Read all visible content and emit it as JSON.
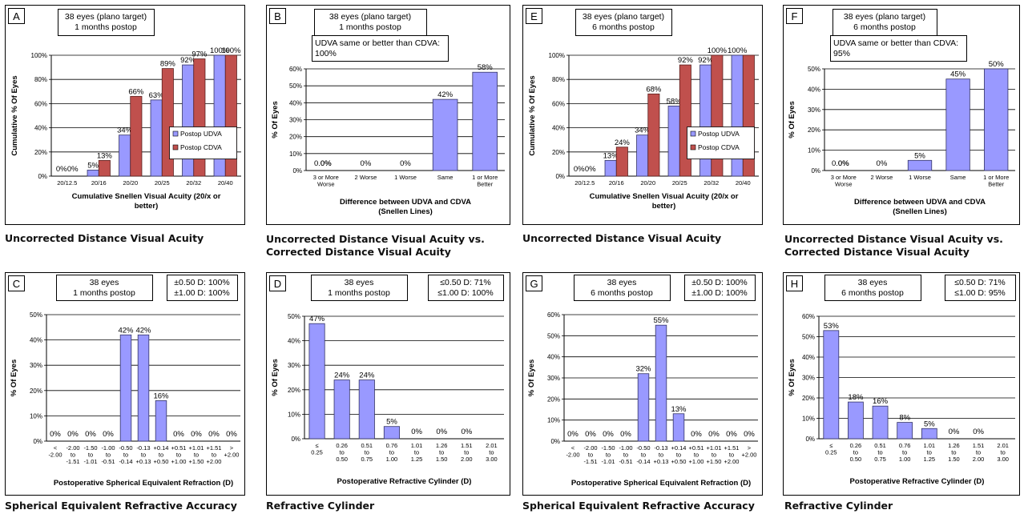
{
  "colors": {
    "udva": "#9999ff",
    "cdva": "#c0504d",
    "bar_edge": "#333366",
    "frame": "#000000",
    "grid": "#000000"
  },
  "captions": {
    "A": "Uncorrected Distance Visual Acuity",
    "B": [
      "Uncorrected Distance Visual Acuity vs.",
      "Corrected Distance Visual Acuity"
    ],
    "E": "Uncorrected Distance Visual Acuity",
    "F": [
      "Uncorrected Distance Visual Acuity vs.",
      "Corrected Distance Visual Acuity"
    ],
    "C": "Spherical Equivalent Refractive Accuracy",
    "D": "Refractive Cylinder",
    "G": "Spherical Equivalent Refractive Accuracy",
    "H": "Refractive Cylinder"
  },
  "chart_data": [
    {
      "panel": "A",
      "type": "bar",
      "header": [
        "38 eyes (plano target)",
        "1 months postop"
      ],
      "categories": [
        "20/12.5",
        "20/16",
        "20/20",
        "20/25",
        "20/32",
        "20/40"
      ],
      "series": [
        {
          "name": "Postop UDVA",
          "values": [
            0,
            5,
            34,
            63,
            92,
            100
          ],
          "labels": [
            "0%",
            "5%",
            "34%",
            "63%",
            "92%",
            "100%"
          ]
        },
        {
          "name": "Postop CDVA",
          "values": [
            0,
            13,
            66,
            89,
            97,
            100
          ],
          "labels": [
            "0%",
            "13%",
            "66%",
            "89%",
            "97%",
            "100%"
          ]
        }
      ],
      "ylabel": "Cumulative % Of Eyes",
      "xlabel": [
        "Cumulative Snellen Visual Acuity (20/x or",
        "better)"
      ],
      "yticks": [
        "0%",
        "20%",
        "40%",
        "60%",
        "80%",
        "100%"
      ],
      "ylim": [
        0,
        100
      ],
      "legend": "right",
      "grid": true
    },
    {
      "panel": "B",
      "type": "bar",
      "header": [
        "38 eyes (plano target)",
        "1 months postop"
      ],
      "note": [
        "UDVA same or better than CDVA:",
        "100%"
      ],
      "categories": [
        [
          "3 or More",
          "Worse"
        ],
        [
          "2 Worse"
        ],
        [
          "1 Worse"
        ],
        [
          "Same"
        ],
        [
          "1 or More",
          "Better"
        ]
      ],
      "series": [
        {
          "name": "",
          "values": [
            0,
            0,
            0,
            42,
            58
          ],
          "labels": [
            "0%",
            "0%",
            "0%",
            "42%",
            "58%"
          ]
        }
      ],
      "extra_label": "0.0%",
      "ylabel": "% Of Eyes",
      "xlabel": [
        "Difference between  UDVA and CDVA",
        "(Snellen Lines)"
      ],
      "yticks": [
        "0%",
        "10%",
        "20%",
        "30%",
        "40%",
        "50%",
        "60%"
      ],
      "ylim": [
        0,
        60
      ],
      "grid": true
    },
    {
      "panel": "E",
      "type": "bar",
      "header": [
        "38 eyes (plano target)",
        "6 months postop"
      ],
      "categories": [
        "20/12.5",
        "20/16",
        "20/20",
        "20/25",
        "20/32",
        "20/40"
      ],
      "series": [
        {
          "name": "Postop UDVA",
          "values": [
            0,
            13,
            34,
            58,
            92,
            100
          ],
          "labels": [
            "0%",
            "13%",
            "34%",
            "58%",
            "92%",
            "100%"
          ]
        },
        {
          "name": "Postop CDVA",
          "values": [
            0,
            24,
            68,
            92,
            100,
            100
          ],
          "labels": [
            "0%",
            "24%",
            "68%",
            "92%",
            "100%",
            ""
          ]
        }
      ],
      "ylabel": "Cumulative % Of Eyes",
      "xlabel": [
        "Cumulative Snellen Visual Acuity (20/x or",
        "better)"
      ],
      "yticks": [
        "0%",
        "20%",
        "40%",
        "60%",
        "80%",
        "100%"
      ],
      "ylim": [
        0,
        100
      ],
      "legend": "right",
      "grid": true
    },
    {
      "panel": "F",
      "type": "bar",
      "header": [
        "38 eyes (plano target)",
        "6 months postop"
      ],
      "note": [
        "UDVA same or better than CDVA:",
        "95%"
      ],
      "categories": [
        [
          "3 or More",
          "Worse"
        ],
        [
          "2 Worse"
        ],
        [
          "1 Worse"
        ],
        [
          "Same"
        ],
        [
          "1 or More",
          "Better"
        ]
      ],
      "series": [
        {
          "name": "",
          "values": [
            0,
            0,
            5,
            45,
            50
          ],
          "labels": [
            "0%",
            "0%",
            "5%",
            "45%",
            "50%"
          ]
        }
      ],
      "extra_label": "0.0%",
      "ylabel": "% Of Eyes",
      "xlabel": [
        "Difference between  UDVA and CDVA",
        "(Snellen Lines)"
      ],
      "yticks": [
        "0%",
        "10%",
        "20%",
        "30%",
        "40%",
        "50%"
      ],
      "ylim": [
        0,
        50
      ],
      "grid": true
    },
    {
      "panel": "C",
      "type": "bar",
      "header": [
        "38 eyes",
        "1 months postop"
      ],
      "stats": [
        "±0.50 D: 100%",
        "±1.00 D: 100%"
      ],
      "categories": [
        [
          "<",
          "-2.00"
        ],
        [
          "-2.00",
          "to",
          "-1.51"
        ],
        [
          "-1.50",
          "to",
          "-1.01"
        ],
        [
          "-1.00",
          "to",
          "-0.51"
        ],
        [
          "-0.50",
          "to",
          "-0.14"
        ],
        [
          "-0.13",
          "to",
          "+0.13"
        ],
        [
          "+0.14",
          "to",
          "+0.50"
        ],
        [
          "+0.51",
          "to",
          "+1.00"
        ],
        [
          "+1.01",
          "to",
          "+1.50"
        ],
        [
          "+1.51",
          "to",
          "+2.00"
        ],
        [
          ">",
          "+2.00"
        ]
      ],
      "series": [
        {
          "name": "",
          "values": [
            0,
            0,
            0,
            0,
            42,
            42,
            16,
            0,
            0,
            0,
            0
          ],
          "labels": [
            "0%",
            "0%",
            "0%",
            "0%",
            "42%",
            "42%",
            "16%",
            "0%",
            "0%",
            "0%",
            "0%"
          ]
        }
      ],
      "ylabel": "% Of Eyes",
      "xlabel": [
        "Postoperative Spherical Equivalent Refraction (D)"
      ],
      "yticks": [
        "0%",
        "10%",
        "20%",
        "30%",
        "40%",
        "50%"
      ],
      "ylim": [
        0,
        50
      ],
      "grid": true
    },
    {
      "panel": "D",
      "type": "bar",
      "header": [
        "38 eyes",
        "1 months postop"
      ],
      "stats": [
        "≤0.50 D: 71%",
        "≤1.00 D: 100%"
      ],
      "categories": [
        [
          "≤",
          "0.25"
        ],
        [
          "0.26",
          "to",
          "0.50"
        ],
        [
          "0.51",
          "to",
          "0.75"
        ],
        [
          "0.76",
          "to",
          "1.00"
        ],
        [
          "1.01",
          "to",
          "1.25"
        ],
        [
          "1.26",
          "to",
          "1.50"
        ],
        [
          "1.51",
          "to",
          "2.00"
        ],
        [
          "2.01",
          "to",
          "3.00"
        ]
      ],
      "series": [
        {
          "name": "",
          "values": [
            47,
            24,
            24,
            5,
            0,
            0,
            0,
            0
          ],
          "labels": [
            "47%",
            "24%",
            "24%",
            "5%",
            "0%",
            "0%",
            "0%",
            ""
          ]
        }
      ],
      "ylabel": "% Of Eyes",
      "xlabel": [
        "Postoperative Refractive Cylinder (D)"
      ],
      "yticks": [
        "0%",
        "10%",
        "20%",
        "30%",
        "40%",
        "50%"
      ],
      "ylim": [
        0,
        50
      ],
      "grid": true
    },
    {
      "panel": "G",
      "type": "bar",
      "header": [
        "38 eyes",
        "6 months postop"
      ],
      "stats": [
        "±0.50 D: 100%",
        "±1.00 D: 100%"
      ],
      "categories": [
        [
          "<",
          "-2.00"
        ],
        [
          "-2.00",
          "to",
          "-1.51"
        ],
        [
          "-1.50",
          "to",
          "-1.01"
        ],
        [
          "-1.00",
          "to",
          "-0.51"
        ],
        [
          "-0.50",
          "to",
          "-0.14"
        ],
        [
          "-0.13",
          "to",
          "+0.13"
        ],
        [
          "+0.14",
          "to",
          "+0.50"
        ],
        [
          "+0.51",
          "to",
          "+1.00"
        ],
        [
          "+1.01",
          "to",
          "+1.50"
        ],
        [
          "+1.51",
          "to",
          "+2.00"
        ],
        [
          ">",
          "+2.00"
        ]
      ],
      "series": [
        {
          "name": "",
          "values": [
            0,
            0,
            0,
            0,
            32,
            55,
            13,
            0,
            0,
            0,
            0
          ],
          "labels": [
            "0%",
            "0%",
            "0%",
            "0%",
            "32%",
            "55%",
            "13%",
            "0%",
            "0%",
            "0%",
            "0%"
          ]
        }
      ],
      "ylabel": "% Of Eyes",
      "xlabel": [
        "Postoperative Spherical Equivalent Refraction (D)"
      ],
      "yticks": [
        "0%",
        "10%",
        "20%",
        "30%",
        "40%",
        "50%",
        "60%"
      ],
      "ylim": [
        0,
        60
      ],
      "grid": true
    },
    {
      "panel": "H",
      "type": "bar",
      "header": [
        "38 eyes",
        "6 months postop"
      ],
      "stats": [
        "≤0.50 D: 71%",
        "≤1.00 D: 95%"
      ],
      "categories": [
        [
          "≤",
          "0.25"
        ],
        [
          "0.26",
          "to",
          "0.50"
        ],
        [
          "0.51",
          "to",
          "0.75"
        ],
        [
          "0.76",
          "to",
          "1.00"
        ],
        [
          "1.01",
          "to",
          "1.25"
        ],
        [
          "1.26",
          "to",
          "1.50"
        ],
        [
          "1.51",
          "to",
          "2.00"
        ],
        [
          "2.01",
          "to",
          "3.00"
        ]
      ],
      "series": [
        {
          "name": "",
          "values": [
            53,
            18,
            16,
            8,
            5,
            0,
            0,
            0
          ],
          "labels": [
            "53%",
            "18%",
            "16%",
            "8%",
            "5%",
            "0%",
            "0%",
            ""
          ]
        }
      ],
      "ylabel": "% Of Eyes",
      "xlabel": [
        "Postoperative Refractive Cylinder (D)"
      ],
      "yticks": [
        "0%",
        "10%",
        "20%",
        "30%",
        "40%",
        "50%",
        "60%"
      ],
      "ylim": [
        0,
        60
      ],
      "grid": true
    }
  ]
}
